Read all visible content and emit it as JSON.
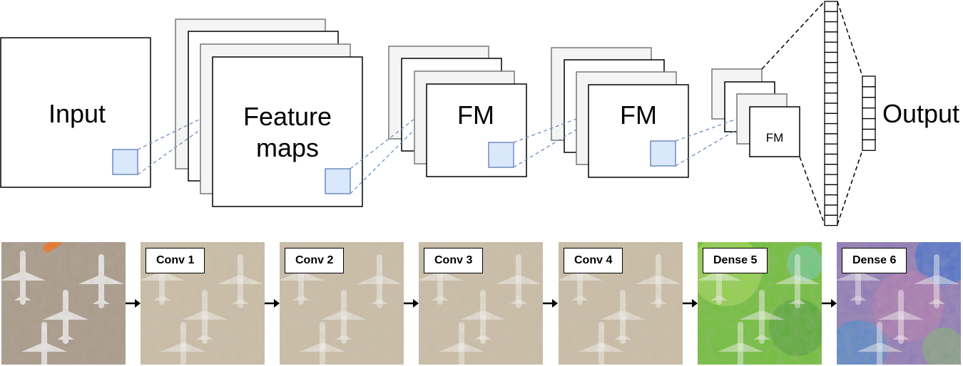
{
  "architecture": {
    "input_label": "Input",
    "feature_maps_label_line1": "Feature",
    "feature_maps_label_line2": "maps",
    "fm_label_1": "FM",
    "fm_label_2": "FM",
    "fm_label_small": "FM",
    "output_label": "Output"
  },
  "visualizations": [
    {
      "label": "",
      "kind": "input-photo"
    },
    {
      "label": "Conv 1",
      "kind": "conv"
    },
    {
      "label": "Conv 2",
      "kind": "conv"
    },
    {
      "label": "Conv 3",
      "kind": "conv"
    },
    {
      "label": "Conv 4",
      "kind": "conv"
    },
    {
      "label": "Dense 5",
      "kind": "dense-green"
    },
    {
      "label": "Dense 6",
      "kind": "dense-purple"
    }
  ],
  "colors": {
    "stack_back": "#f4f4f4",
    "receptive_field": "#dae8fc",
    "receptive_stroke": "#6c8ebf",
    "tarmac": "#a89a8a",
    "conv_tint": "#cbbfa8",
    "dense_green": "#6fbf3a",
    "dense_purple": "#8f7ab8"
  }
}
